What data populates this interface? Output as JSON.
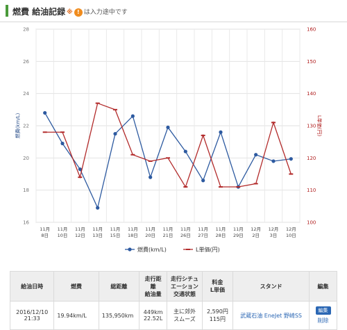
{
  "header": {
    "title": "燃費 給油記録",
    "note_prefix": "※",
    "note_icon": "!",
    "note_text": "は入力途中です"
  },
  "chart_data": {
    "type": "line",
    "categories": [
      [
        "11月",
        "8日"
      ],
      [
        "11月",
        "10日"
      ],
      [
        "11月",
        "12日"
      ],
      [
        "11月",
        "13日"
      ],
      [
        "11月",
        "15日"
      ],
      [
        "11月",
        "18日"
      ],
      [
        "11月",
        "20日"
      ],
      [
        "11月",
        "21日"
      ],
      [
        "11月",
        "26日"
      ],
      [
        "11月",
        "27日"
      ],
      [
        "11月",
        "28日"
      ],
      [
        "11月",
        "29日"
      ],
      [
        "12月",
        "2日"
      ],
      [
        "12月",
        "3日"
      ],
      [
        "12月",
        "10日"
      ]
    ],
    "series": [
      {
        "name": "燃費(km/L)",
        "axis": "left",
        "color": "#2d5aa0",
        "values": [
          22.8,
          20.9,
          19.3,
          16.9,
          21.5,
          22.6,
          18.8,
          21.9,
          20.4,
          18.6,
          21.6,
          18.2,
          20.2,
          19.8,
          19.94
        ]
      },
      {
        "name": "L単価(円)",
        "axis": "right",
        "color": "#b22a2a",
        "values": [
          128,
          128,
          114,
          137,
          135,
          121,
          119,
          120,
          111,
          127,
          111,
          111,
          112,
          131,
          115
        ]
      }
    ],
    "ylabel_left": "燃費(km/L)",
    "ylabel_right": "L単価(円)",
    "ylim_left": [
      16,
      28
    ],
    "yticks_left": [
      16,
      18,
      20,
      22,
      24,
      26,
      28
    ],
    "ylim_right": [
      100,
      160
    ],
    "yticks_right": [
      100,
      110,
      120,
      130,
      140,
      150,
      160
    ],
    "grid": true,
    "legend": "bottom"
  },
  "table": {
    "headers": [
      {
        "lines": [
          "給油日時"
        ]
      },
      {
        "lines": [
          "燃費"
        ]
      },
      {
        "lines": [
          "総距離"
        ]
      },
      {
        "lines": [
          "走行距",
          "離",
          "給油量"
        ]
      },
      {
        "lines": [
          "走行シチュ",
          "エーション",
          "交通状態"
        ]
      },
      {
        "lines": [
          "料金",
          "L単価"
        ]
      },
      {
        "lines": [
          "スタンド"
        ]
      },
      {
        "lines": [
          "編集"
        ]
      }
    ],
    "rows": [
      {
        "date": "2016/12/10",
        "time": "21:33",
        "fuel_economy": "19.94km/L",
        "total_distance": "135,950km",
        "trip_distance": "449km",
        "fuel_amount": "22.52L",
        "situation": "主に郊外",
        "traffic": "スムーズ",
        "price": "2,590円",
        "unit_price": "115円",
        "station": "武蔵石油 EneJet 野崎SS",
        "edit_label": "編集",
        "delete_label": "削除"
      }
    ]
  }
}
